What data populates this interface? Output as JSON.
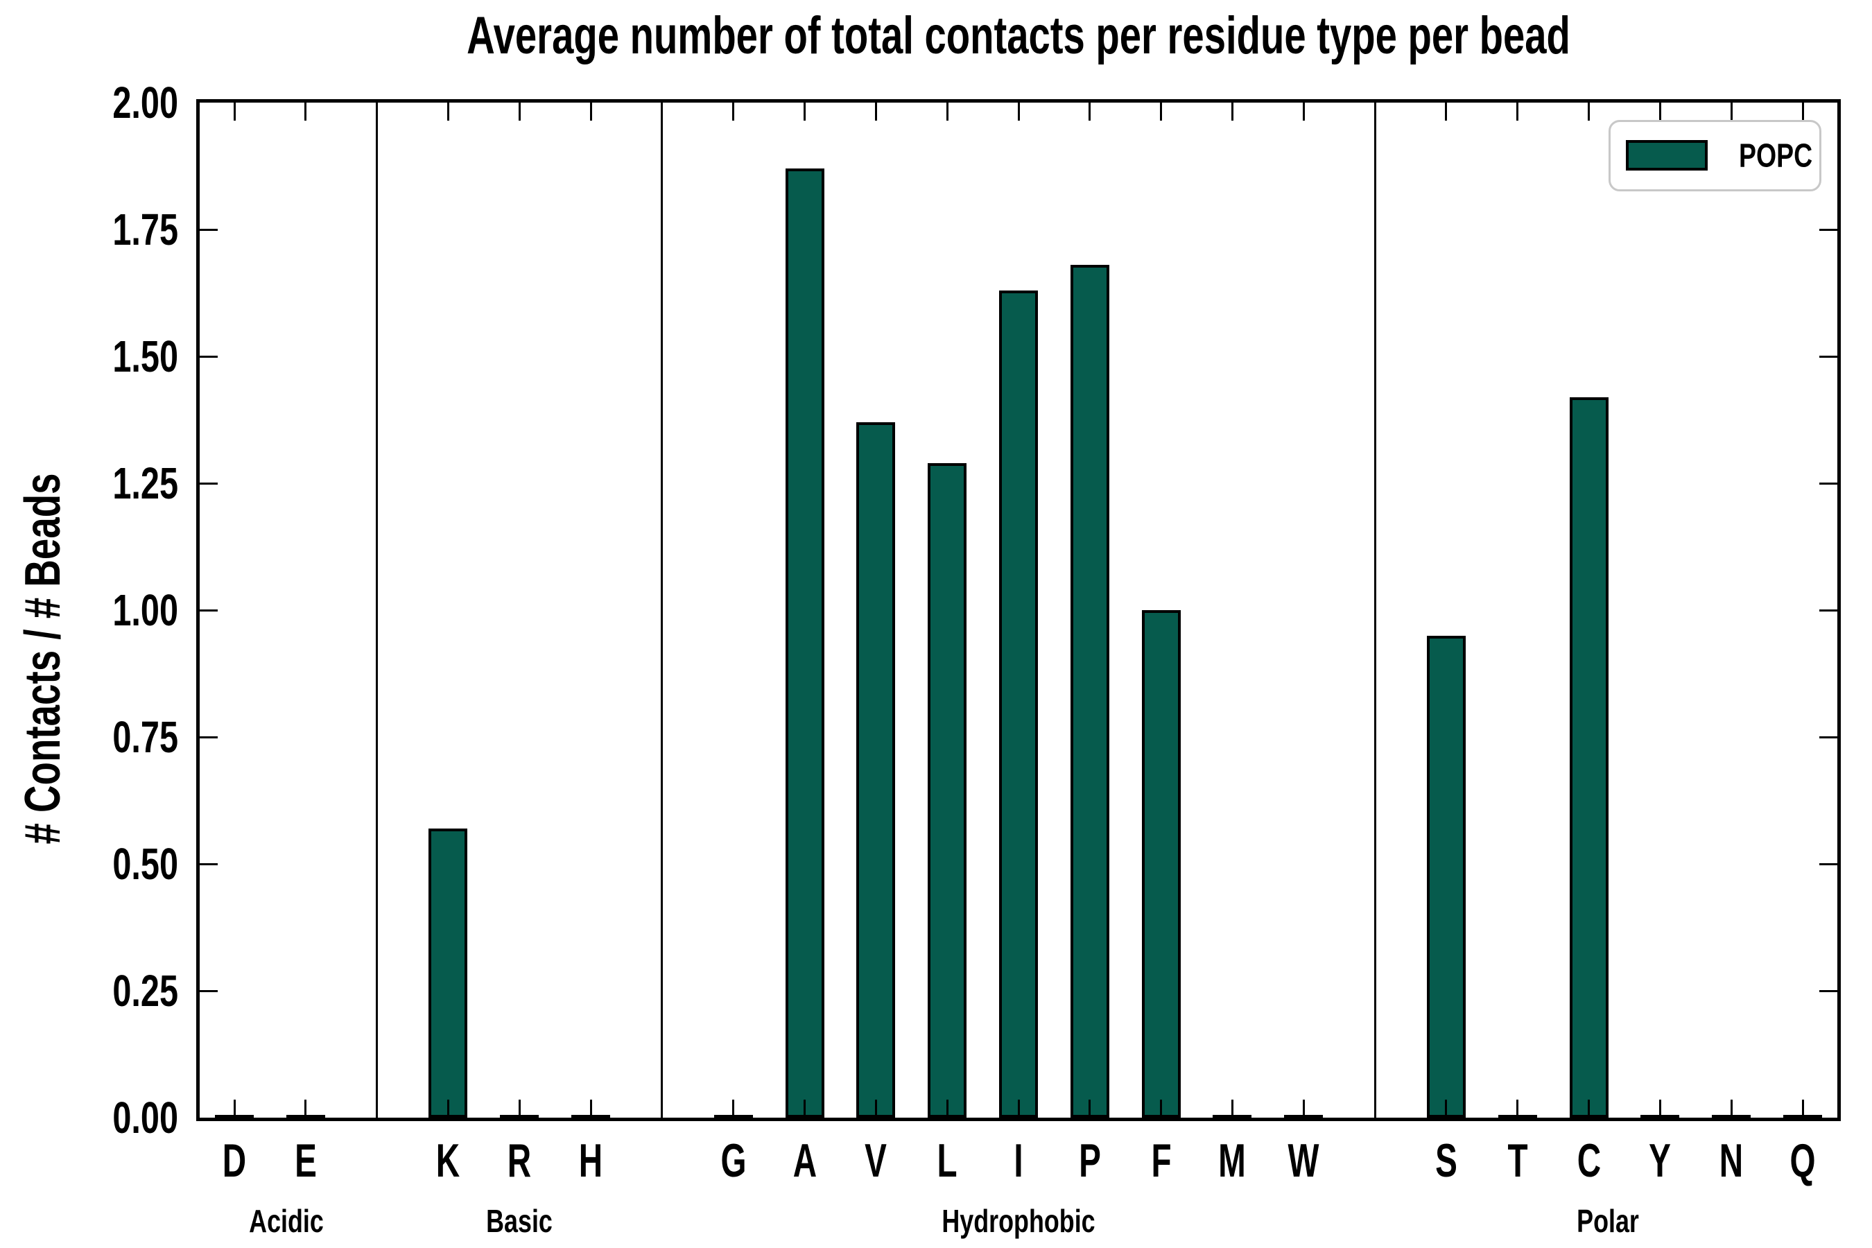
{
  "colors": {
    "bar_fill": "#065B4D",
    "bar_edge": "#000000",
    "axis": "#000000",
    "legend_border": "#c8c8c8",
    "background": "#ffffff"
  },
  "chart_data": {
    "type": "bar",
    "title": "Average number of total contacts per residue type per bead",
    "xlabel": "",
    "ylabel": "# Contacts / # Beads",
    "ylim": [
      0.0,
      2.0
    ],
    "ytick_step": 0.25,
    "ytick_labels": [
      "2.00",
      "1.75",
      "1.50",
      "1.25",
      "1.00",
      "0.75",
      "0.50",
      "0.25",
      "0.00"
    ],
    "grid": false,
    "legend": [
      {
        "name": "POPC",
        "color": "#065B4D"
      }
    ],
    "legend_position": "upper right",
    "groups": [
      {
        "label": "Acidic",
        "categories": [
          "D",
          "E"
        ],
        "values": [
          0.0,
          0.0
        ]
      },
      {
        "label": "Basic",
        "categories": [
          "K",
          "R",
          "H"
        ],
        "values": [
          0.57,
          0.0,
          0.0
        ]
      },
      {
        "label": "Hydrophobic",
        "categories": [
          "G",
          "A",
          "V",
          "L",
          "I",
          "P",
          "F",
          "M",
          "W"
        ],
        "values": [
          0.0,
          1.87,
          1.37,
          1.29,
          1.63,
          1.68,
          1.0,
          0.0,
          0.0
        ]
      },
      {
        "label": "Polar",
        "categories": [
          "S",
          "T",
          "C",
          "Y",
          "N",
          "Q"
        ],
        "values": [
          0.95,
          0.0,
          1.42,
          0.0,
          0.0,
          0.0
        ]
      }
    ]
  }
}
